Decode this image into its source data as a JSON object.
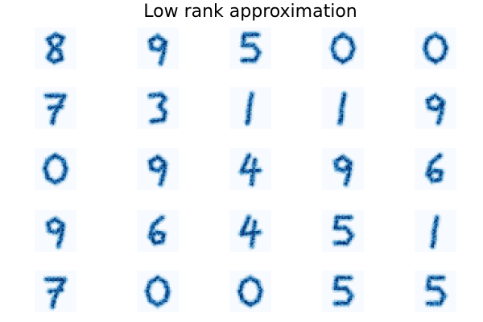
{
  "figure": {
    "title": "Low rank approximation",
    "colormap": "Blues",
    "colormap_stops": [
      "#f7fbff",
      "#deebf7",
      "#c6dbef",
      "#9ecae1",
      "#6baed6",
      "#4292c6",
      "#2171b5",
      "#08519c",
      "#08306b"
    ],
    "grid": {
      "rows": 5,
      "cols": 5
    },
    "panels": [
      {
        "digit": "8"
      },
      {
        "digit": "9"
      },
      {
        "digit": "5"
      },
      {
        "digit": "0"
      },
      {
        "digit": "0"
      },
      {
        "digit": "7"
      },
      {
        "digit": "3"
      },
      {
        "digit": "1"
      },
      {
        "digit": "1"
      },
      {
        "digit": "9"
      },
      {
        "digit": "0"
      },
      {
        "digit": "9"
      },
      {
        "digit": "4"
      },
      {
        "digit": "9"
      },
      {
        "digit": "6"
      },
      {
        "digit": "9"
      },
      {
        "digit": "6"
      },
      {
        "digit": "4"
      },
      {
        "digit": "5"
      },
      {
        "digit": "1"
      },
      {
        "digit": "7"
      },
      {
        "digit": "0"
      },
      {
        "digit": "0"
      },
      {
        "digit": "5"
      },
      {
        "digit": "5"
      }
    ]
  }
}
